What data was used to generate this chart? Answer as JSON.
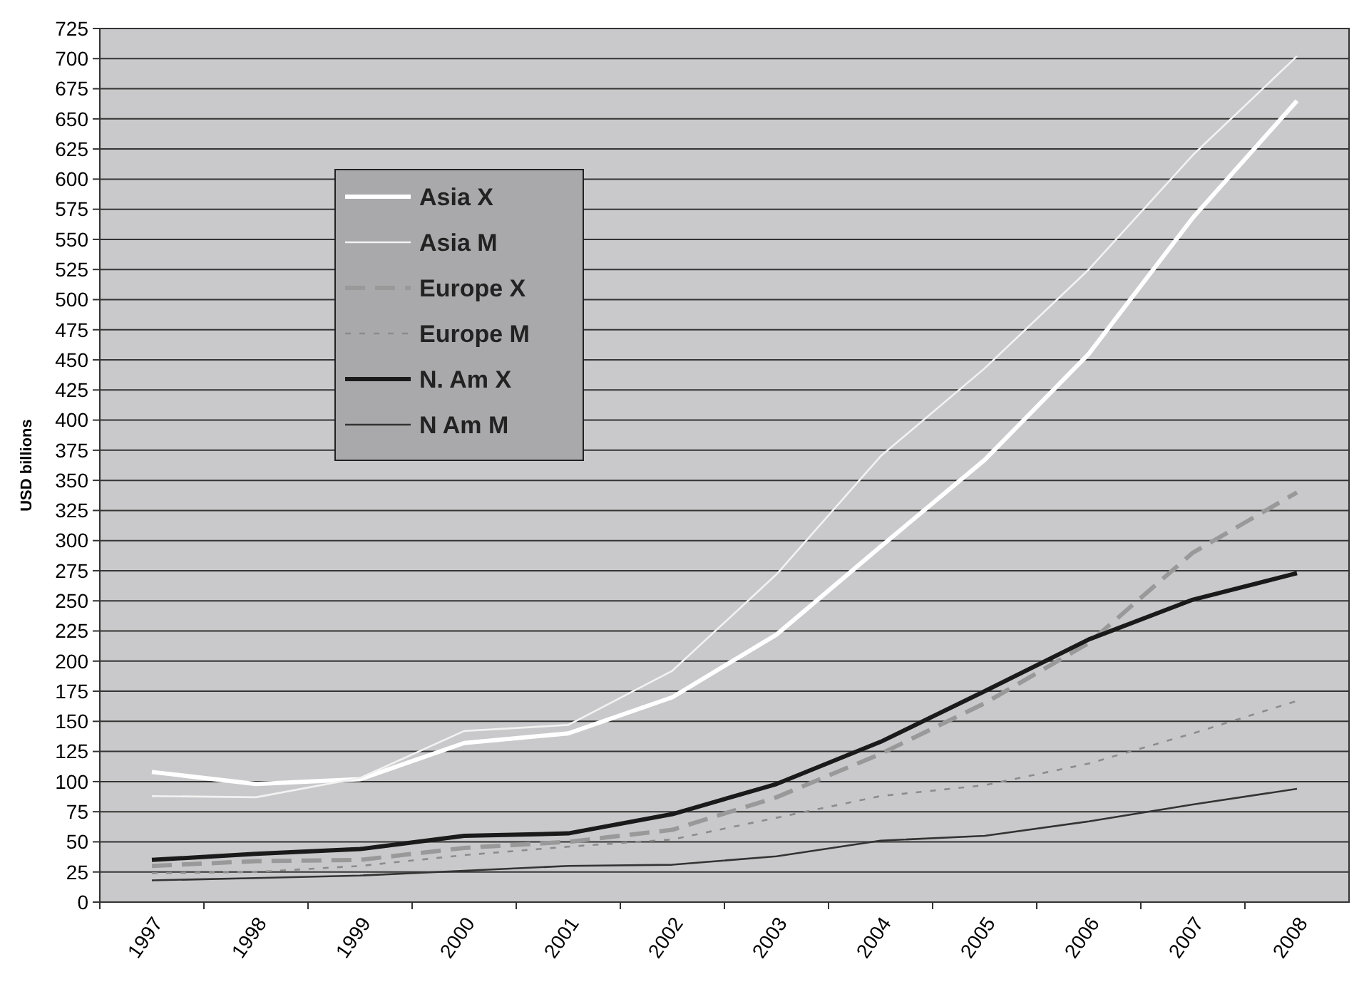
{
  "chart_data": {
    "type": "line",
    "ylabel": "USD billions",
    "categories": [
      "1997",
      "1998",
      "1999",
      "2000",
      "2001",
      "2002",
      "2003",
      "2004",
      "2005",
      "2006",
      "2007",
      "2008"
    ],
    "ylim": [
      0,
      725
    ],
    "yticks": [
      0,
      25,
      50,
      75,
      100,
      125,
      150,
      175,
      200,
      225,
      250,
      275,
      300,
      325,
      350,
      375,
      400,
      425,
      450,
      475,
      500,
      525,
      550,
      575,
      600,
      625,
      650,
      675,
      700,
      725
    ],
    "grid": "y",
    "legend": "top left",
    "marker": "none",
    "series": [
      {
        "name": "Asia X",
        "color": "#ffffff",
        "line_style": "solid",
        "values": [
          108,
          98,
          102,
          132,
          140,
          170,
          222,
          295,
          367,
          455,
          568,
          665
        ]
      },
      {
        "name": "Asia M",
        "color": "#f2f2f2",
        "line_style": "solid",
        "values": [
          88,
          87,
          103,
          142,
          147,
          192,
          272,
          370,
          443,
          525,
          620,
          702
        ]
      },
      {
        "name": "Europe X",
        "color": "#999999",
        "line_style": "dashed",
        "values": [
          30,
          34,
          35,
          45,
          50,
          60,
          87,
          123,
          165,
          215,
          290,
          340
        ]
      },
      {
        "name": "Europe M",
        "color": "#8c8c8c",
        "line_style": "dotted",
        "values": [
          24,
          25,
          30,
          39,
          46,
          52,
          70,
          88,
          97,
          115,
          140,
          167
        ]
      },
      {
        "name": "N. Am X",
        "color": "#1a1a1a",
        "line_style": "solid",
        "values": [
          35,
          40,
          44,
          55,
          57,
          73,
          98,
          133,
          175,
          218,
          251,
          273
        ]
      },
      {
        "name": "N Am M",
        "color": "#333333",
        "line_style": "solid",
        "values": [
          18,
          20,
          22,
          26,
          30,
          31,
          38,
          51,
          55,
          67,
          81,
          94
        ]
      }
    ]
  }
}
